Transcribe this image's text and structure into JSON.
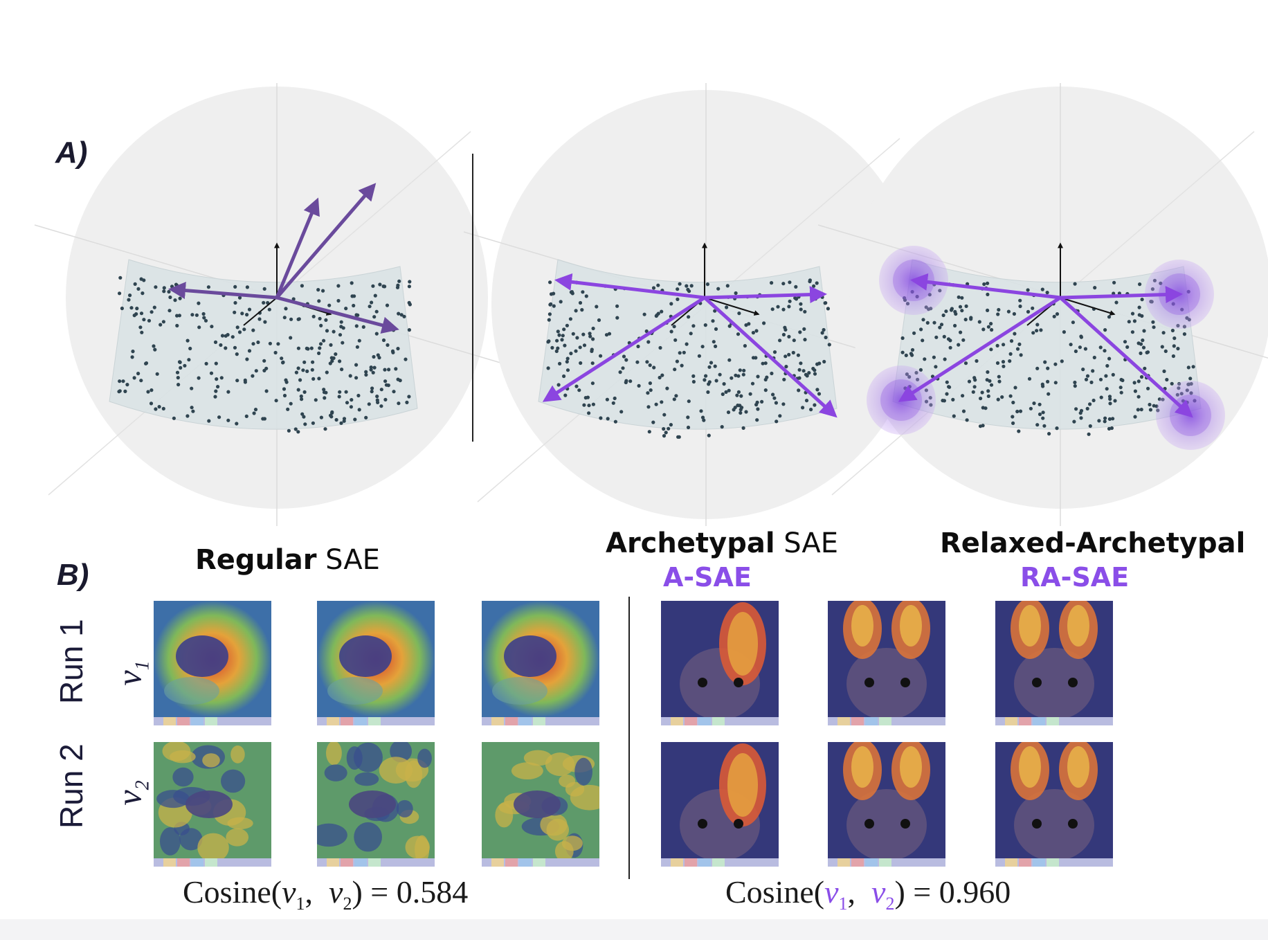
{
  "panel_a": {
    "label": "A)"
  },
  "panel_b": {
    "label": "B)"
  },
  "spheres": [
    {
      "name": "regular",
      "arrow_color": "#6a4a9c",
      "archetype_blobs": false
    },
    {
      "name": "archetypal",
      "arrow_color": "#8b45e0",
      "archetype_blobs": false
    },
    {
      "name": "relaxed",
      "arrow_color": "#8b45e0",
      "archetype_blobs": true
    }
  ],
  "titles": {
    "regular": {
      "bold": "Regular",
      "rest": " SAE"
    },
    "archetypal": {
      "bold": "Archetypal",
      "rest": " SAE",
      "sub": "A-SAE"
    },
    "relaxed": {
      "bold": "Relaxed-Archetypal",
      "rest": "",
      "sub": "RA-SAE"
    }
  },
  "rows": [
    {
      "run": "Run 1",
      "vec": "v",
      "vec_sub": "1"
    },
    {
      "run": "Run 2",
      "vec": "v",
      "vec_sub": "2"
    }
  ],
  "cosine_regular": {
    "prefix": "Cosine(",
    "v1": "v",
    "s1": "1",
    "sep": ",  ",
    "v2": "v",
    "s2": "2",
    "suffix": ") = 0.584"
  },
  "cosine_archetypal": {
    "prefix": "Cosine(",
    "v1": "v",
    "s1": "1",
    "sep": ",  ",
    "v2": "v",
    "s2": "2",
    "suffix": ") = 0.960"
  },
  "colors": {
    "accent": "#8b45e0",
    "regular_arrow": "#6a4a9c",
    "manifold": "#d9e2e4",
    "dots": "#2f4450"
  }
}
